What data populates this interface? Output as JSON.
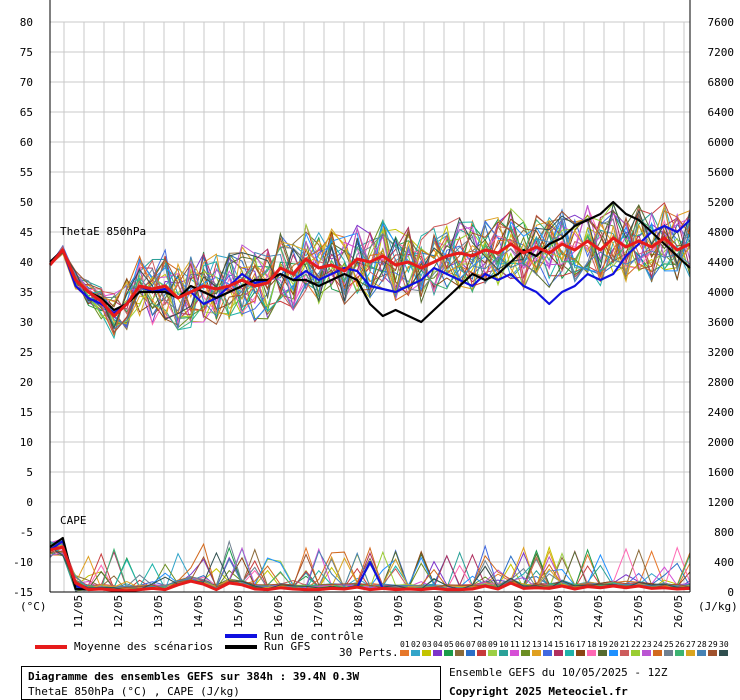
{
  "chart_data": {
    "type": "line",
    "left_axis": {
      "unit": "(°C)",
      "ticks": [
        80,
        75,
        70,
        65,
        60,
        55,
        50,
        45,
        40,
        35,
        30,
        25,
        20,
        15,
        10,
        5,
        0,
        -5,
        -10,
        -15
      ],
      "ylim": [
        -15,
        80
      ]
    },
    "right_axis": {
      "unit": "(J/kg)",
      "ticks": [
        7600,
        7200,
        6800,
        6400,
        6000,
        5600,
        5200,
        4800,
        4400,
        4000,
        3600,
        3200,
        2800,
        2400,
        2000,
        1600,
        1200,
        800,
        400,
        0
      ],
      "ylim": [
        0,
        7600
      ]
    },
    "x_dates": [
      "11/05",
      "12/05",
      "13/05",
      "14/05",
      "15/05",
      "16/05",
      "17/05",
      "18/05",
      "19/05",
      "20/05",
      "21/05",
      "22/05",
      "23/05",
      "24/05",
      "25/05",
      "26/05"
    ],
    "panel_labels": {
      "thetae": "ThetaE 850hPa",
      "cape": "CAPE"
    },
    "grid": true,
    "series": [
      {
        "name": "Moyenne des scénarios",
        "color": "#e61b1b",
        "thetae": [
          39.5,
          42,
          37,
          35,
          33.5,
          31,
          33,
          36,
          35.5,
          36,
          34,
          35,
          36,
          35.5,
          36,
          37,
          36,
          36.5,
          39,
          38,
          40.5,
          39,
          39.5,
          38.5,
          40.5,
          40,
          41,
          39.5,
          40,
          39,
          40,
          41,
          41.5,
          41,
          42,
          41.5,
          43,
          41.5,
          42.5,
          41.5,
          43,
          42,
          43.5,
          42,
          44,
          42.5,
          43.5,
          42.5,
          44,
          42,
          43
        ],
        "cape": [
          -8,
          -7.5,
          -13.5,
          -14.6,
          -14.5,
          -14.7,
          -14.8,
          -14.6,
          -14.4,
          -14.6,
          -13.8,
          -13.2,
          -13.7,
          -14.6,
          -13.5,
          -13.8,
          -14.5,
          -14.6,
          -14.3,
          -14.5,
          -14.6,
          -14.6,
          -14.4,
          -14.5,
          -14.2,
          -14.6,
          -14.4,
          -14.6,
          -14.5,
          -14.6,
          -14.4,
          -14.6,
          -14.6,
          -14.5,
          -14,
          -14.5,
          -13.5,
          -14.4,
          -14.3,
          -14.4,
          -14.0,
          -14.5,
          -14.1,
          -14.3,
          -14.0,
          -14.3,
          -14.0,
          -14.4,
          -14.3,
          -14.5,
          -14.4
        ]
      },
      {
        "name": "Run de contrôle",
        "color": "#1010e0",
        "thetae": [
          40,
          42,
          36,
          34,
          33,
          31.5,
          33,
          36,
          35,
          35.5,
          34,
          35,
          33,
          34,
          36,
          38,
          36.5,
          37,
          38,
          37,
          38.5,
          37,
          38,
          39,
          38.5,
          36,
          35.5,
          35,
          36,
          37,
          39,
          38,
          37,
          36,
          38,
          37,
          38,
          36,
          35,
          33,
          35,
          36,
          38,
          37,
          38,
          41,
          43,
          45,
          46,
          45,
          47
        ],
        "cape": [
          -8,
          -6.5,
          -14,
          -14.6,
          -14.5,
          -14.7,
          -14.8,
          -14.6,
          -14.4,
          -14.6,
          -13.8,
          -13.2,
          -13.7,
          -14.6,
          -13.5,
          -13.8,
          -14.5,
          -14.6,
          -14.3,
          -14.5,
          -14.6,
          -14.6,
          -14.4,
          -14.5,
          -14.2,
          -10,
          -14.4,
          -14.6,
          -14.5,
          -14.6,
          -14.4,
          -14.6,
          -14.6,
          -14.5,
          -14,
          -14.5,
          -13.5,
          -14.4,
          -14.3,
          -14.4,
          -14.0,
          -14.5,
          -14.1,
          -14.3,
          -14.0,
          -14.3,
          -14.0,
          -14.4,
          -14.3,
          -14.5,
          -14.4
        ]
      },
      {
        "name": "Run GFS",
        "color": "#000000",
        "thetae": [
          40,
          42,
          37,
          35,
          34,
          32,
          33,
          35,
          35,
          35,
          34,
          36,
          35,
          34,
          35,
          36,
          37,
          37,
          38,
          37,
          37,
          36,
          37,
          38,
          37,
          33,
          31,
          32,
          31,
          30,
          32,
          34,
          36,
          38,
          37,
          38,
          40,
          42,
          41,
          43,
          44,
          46,
          47,
          48,
          50,
          48,
          47,
          45,
          43,
          41,
          39
        ],
        "cape": [
          -7.5,
          -6,
          -14.5,
          -14.6,
          -14.5,
          -14.7,
          -14.8,
          -14.6,
          -14.4,
          -14.6,
          -13.8,
          -13.2,
          -13.7,
          -14.6,
          -13.5,
          -13.8,
          -14.5,
          -14.6,
          -14.3,
          -14.5,
          -14.6,
          -14.6,
          -14.4,
          -14.5,
          -14.2,
          -14.6,
          -14.4,
          -14.6,
          -14.5,
          -14.6,
          -14.4,
          -14.6,
          -14.6,
          -14.5,
          -14,
          -14.5,
          -13.5,
          -14.4,
          -14.3,
          -14.4,
          -14.0,
          -14.5,
          -14.1,
          -14.3,
          -14.0,
          -14.3,
          -14.0,
          -14.4,
          -14.3,
          -14.5,
          -14.4
        ]
      }
    ],
    "perturbations": {
      "count": 30,
      "colors": [
        "#e6772a",
        "#33a5c9",
        "#c4c400",
        "#7d34c9",
        "#1a9c4a",
        "#8c6b3a",
        "#2b6fc7",
        "#c73a3a",
        "#9ccf45",
        "#2aa198",
        "#d64fd6",
        "#6b8e23",
        "#e0a020",
        "#4169e1",
        "#b03060",
        "#20b2aa",
        "#8b4513",
        "#ff69b4",
        "#556b2f",
        "#1e90ff",
        "#cd5c5c",
        "#9acd32",
        "#ba55d3",
        "#d2691e",
        "#708090",
        "#3cb371",
        "#daa520",
        "#4682b4",
        "#a0522d",
        "#2f4f4f"
      ]
    }
  },
  "legend": {
    "mean": "Moyenne des scénarios",
    "control": "Run de contrôle",
    "gfs": "Run GFS",
    "perts": "30 Perts.",
    "pert_numbers": [
      "01",
      "02",
      "03",
      "04",
      "05",
      "06",
      "07",
      "08",
      "09",
      "10",
      "11",
      "12",
      "13",
      "14",
      "15",
      "16",
      "17",
      "18",
      "19",
      "20",
      "21",
      "22",
      "23",
      "24",
      "25",
      "26",
      "27",
      "28",
      "29",
      "30"
    ]
  },
  "footer": {
    "title": "Diagramme des ensembles GEFS sur 384h : 39.4N 0.3W",
    "subtitle": "ThetaE 850hPa (°C) , CAPE (J/kg)",
    "ensemble": "Ensemble GEFS du 10/05/2025 - 12Z",
    "copyright": "Copyright 2025 Meteociel.fr"
  }
}
